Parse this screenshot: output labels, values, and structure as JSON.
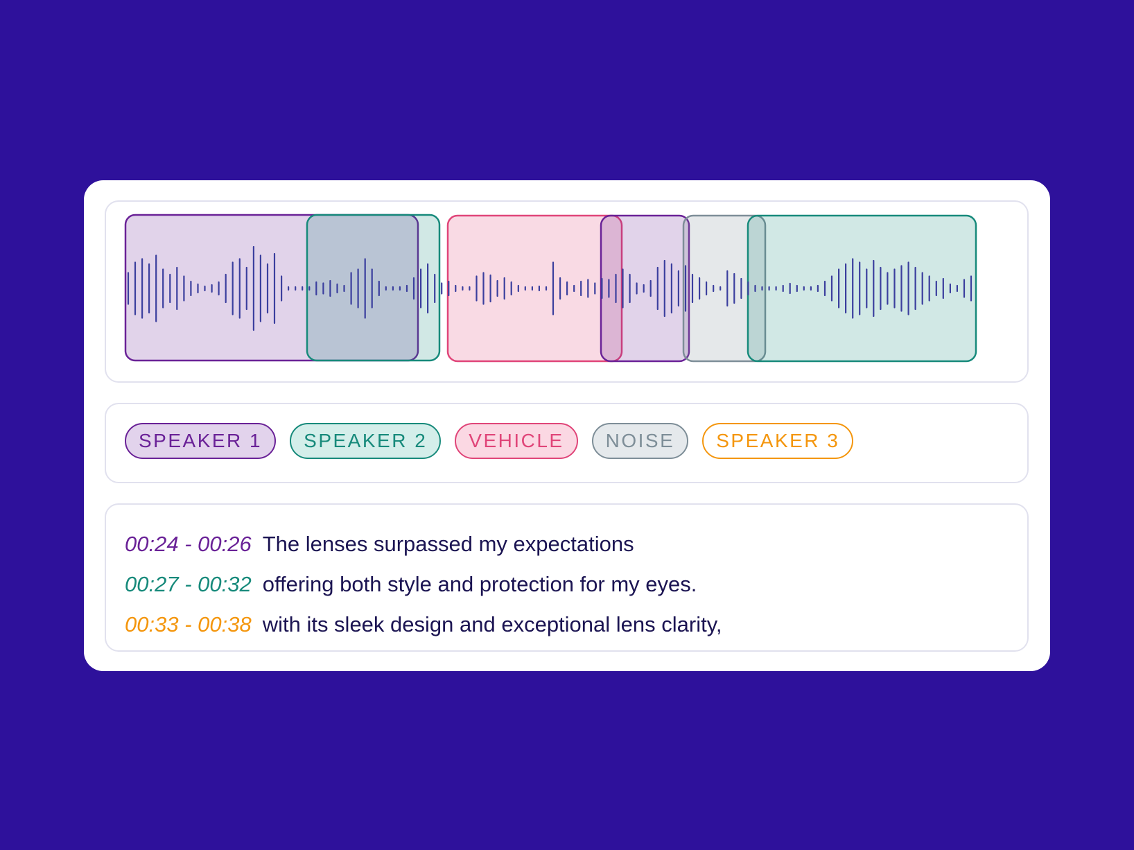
{
  "colors": {
    "background": "#2e119b",
    "wave_line": "#3b3f9e"
  },
  "labels": [
    {
      "id": "speaker1",
      "label": "SPEAKER 1",
      "text_color": "#6a2297",
      "border": "#6a2297",
      "fill": "#e2d3ec"
    },
    {
      "id": "speaker2",
      "label": "SPEAKER 2",
      "text_color": "#178a7b",
      "border": "#178a7b",
      "fill": "#d4eeea"
    },
    {
      "id": "vehicle",
      "label": "VEHICLE",
      "text_color": "#e04579",
      "border": "#e04579",
      "fill": "#fbd8e3"
    },
    {
      "id": "noise",
      "label": "NOISE",
      "text_color": "#7e8e98",
      "border": "#7e8e98",
      "fill": "#e5e9ec"
    },
    {
      "id": "speaker3",
      "label": "SPEAKER 3",
      "text_color": "#f4960d",
      "border": "#f4960d",
      "fill": "#ffffff"
    }
  ],
  "segments": [
    {
      "label": "speaker1"
    },
    {
      "label": "speaker2"
    },
    {
      "label": "vehicle"
    },
    {
      "label": "speaker1"
    },
    {
      "label": "noise"
    },
    {
      "label": "speaker2"
    }
  ],
  "transcript": [
    {
      "time": "00:24 - 00:26",
      "text": "The lenses surpassed my expectations",
      "color": "#6a2297"
    },
    {
      "time": "00:27 - 00:32",
      "text": "offering both style and protection for my eyes.",
      "color": "#178a7b"
    },
    {
      "time": "00:33 - 00:38",
      "text": "with its sleek design and exceptional lens clarity,",
      "color": "#f4960d"
    }
  ]
}
